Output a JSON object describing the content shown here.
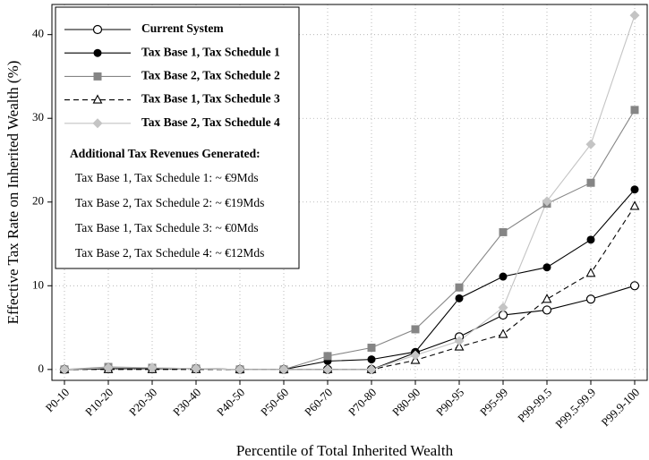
{
  "chart_data": {
    "type": "line",
    "x_label": "Percentile of Total Inherited Wealth",
    "y_label": "Effective Tax Rate on Inherited Wealth (%)",
    "categories": [
      "P0-10",
      "P10-20",
      "P20-30",
      "P30-40",
      "P40-50",
      "P50-60",
      "P60-70",
      "P70-80",
      "P80-90",
      "P90-95",
      "P95-99",
      "P99-99.5",
      "P99.5-99.9",
      "P99.9-100"
    ],
    "series": [
      {
        "name": "Current System",
        "color": "#000000",
        "marker": "circle-open",
        "dash": false,
        "values": [
          0,
          0.1,
          0.1,
          0.1,
          0,
          0,
          0,
          0,
          2.0,
          3.9,
          6.5,
          7.1,
          8.4,
          10.0
        ]
      },
      {
        "name": "Tax Base 1, Tax Schedule 1",
        "color": "#000000",
        "marker": "circle",
        "dash": false,
        "values": [
          0,
          0.1,
          0.1,
          0.1,
          0,
          0,
          1.0,
          1.2,
          2.1,
          8.5,
          11.1,
          12.2,
          15.5,
          21.5
        ]
      },
      {
        "name": "Tax Base 2, Tax Schedule 2",
        "color": "#858585",
        "marker": "square",
        "dash": false,
        "values": [
          0,
          0.3,
          0.2,
          0.1,
          0,
          0,
          1.6,
          2.6,
          4.8,
          9.8,
          16.4,
          19.8,
          22.3,
          31.0
        ]
      },
      {
        "name": "Tax Base 1, Tax Schedule 3",
        "color": "#000000",
        "marker": "triangle-open",
        "dash": true,
        "values": [
          0,
          0,
          0,
          0,
          0,
          0,
          0,
          0,
          1.1,
          2.7,
          4.2,
          8.4,
          11.5,
          19.5
        ]
      },
      {
        "name": "Tax Base 2, Tax Schedule 4",
        "color": "#c4c4c4",
        "marker": "diamond",
        "dash": false,
        "values": [
          0,
          0.2,
          0.2,
          0.1,
          0,
          0,
          0,
          0,
          1.7,
          3.4,
          7.4,
          20.1,
          26.9,
          42.3
        ]
      }
    ],
    "annotation_title": "Additional Tax Revenues Generated:",
    "annotations": [
      "Tax Base 1, Tax Schedule 1: ~ €9Mds",
      "Tax Base 2, Tax Schedule 2: ~ €19Mds",
      "Tax Base 1, Tax Schedule 3: ~ €0Mds",
      "Tax Base 2, Tax Schedule 4: ~ €12Mds"
    ],
    "ylim": [
      -1.3,
      43.6
    ],
    "yticks": [
      0,
      10,
      20,
      30,
      40
    ],
    "grid": true
  }
}
